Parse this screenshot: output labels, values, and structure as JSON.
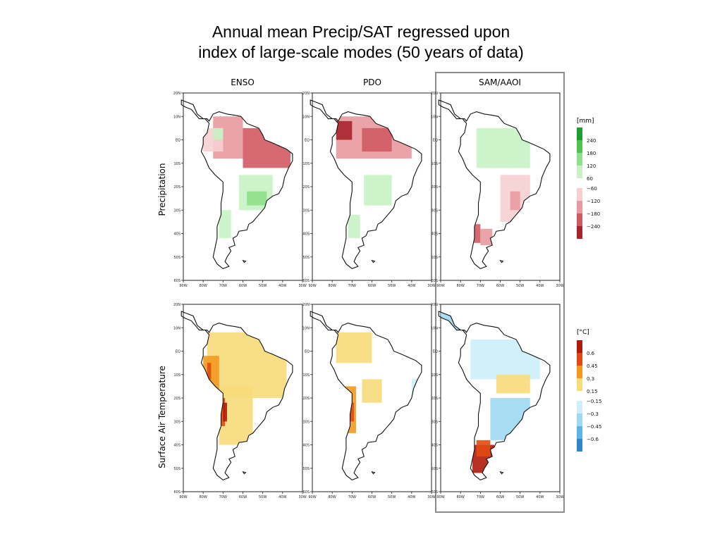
{
  "title": {
    "line1": "Annual mean Precip/SAT regressed upon",
    "line2": "index of large-scale modes (50 years of data)"
  },
  "columns": [
    "ENSO",
    "PDO",
    "SAM/AAOI"
  ],
  "rows": [
    "Precipitation",
    "Surface Air Temperature"
  ],
  "lat_ticks": [
    "20N",
    "10N",
    "EQ",
    "10S",
    "20S",
    "30S",
    "40S",
    "50S",
    "60S"
  ],
  "lon_ticks": [
    "90W",
    "80W",
    "70W",
    "60W",
    "50W",
    "40W",
    "30W"
  ],
  "colorbars": {
    "precip": {
      "unit": "[mm]",
      "labels": [
        "240",
        "180",
        "120",
        "60",
        "−60",
        "−120",
        "−180",
        "−240"
      ],
      "colors_positive": [
        "#1e9e2e",
        "#4cc44f",
        "#8ee08a",
        "#c8f2c4"
      ],
      "colors_negative": [
        "#f6cfd1",
        "#e89aa0",
        "#d05a63",
        "#a8232c"
      ]
    },
    "sat": {
      "unit": "[°C]",
      "labels": [
        "0.6",
        "0.45",
        "0.3",
        "0.15",
        "−0.15",
        "−0.3",
        "−0.45",
        "−0.6"
      ],
      "colors_positive": [
        "#b01a0a",
        "#e04a12",
        "#f29a1e",
        "#f7dc7a"
      ],
      "colors_negative": [
        "#cdeefa",
        "#9fd8f2",
        "#5cb4e6",
        "#2f86c8"
      ]
    }
  },
  "highlighted_column": "SAM/AAOI"
}
